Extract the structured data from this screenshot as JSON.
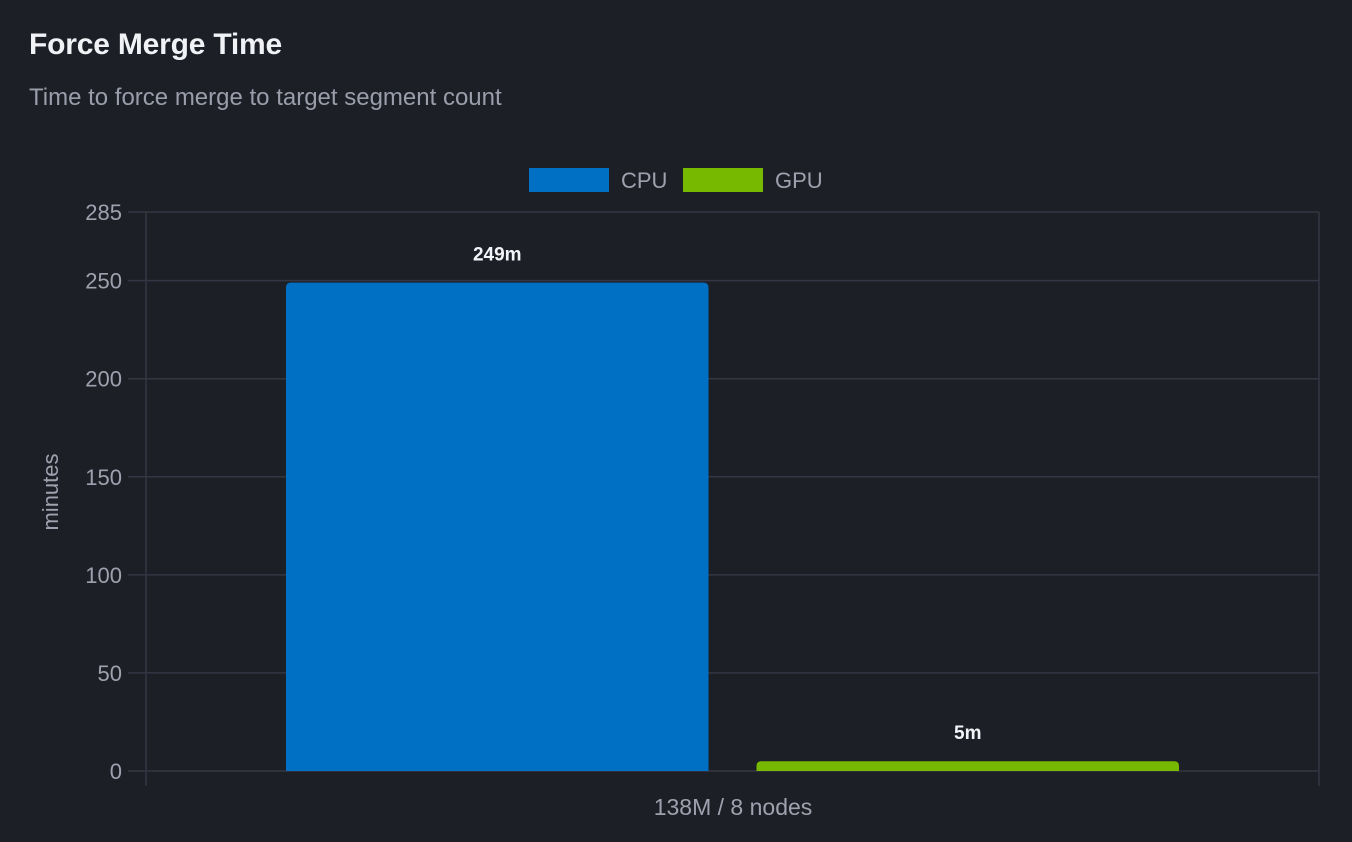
{
  "header": {
    "title": "Force Merge Time",
    "subtitle": "Time to force merge to target segment count"
  },
  "colors": {
    "background": "#1d1f27",
    "grid": "#343644",
    "cpu": "#0070c5",
    "gpu": "#76b900"
  },
  "chart_data": {
    "type": "bar",
    "categories": [
      "138M / 8 nodes"
    ],
    "series": [
      {
        "name": "CPU",
        "values": [
          249
        ],
        "label": "249m",
        "color": "#0070c5"
      },
      {
        "name": "GPU",
        "values": [
          5
        ],
        "label": "5m",
        "color": "#76b900"
      }
    ],
    "xlabel": "138M / 8 nodes",
    "ylabel": "minutes",
    "ylim": [
      0,
      285
    ],
    "yticks": [
      0,
      50,
      100,
      150,
      200,
      250,
      285
    ],
    "grid": true,
    "legend_position": "top-center"
  }
}
